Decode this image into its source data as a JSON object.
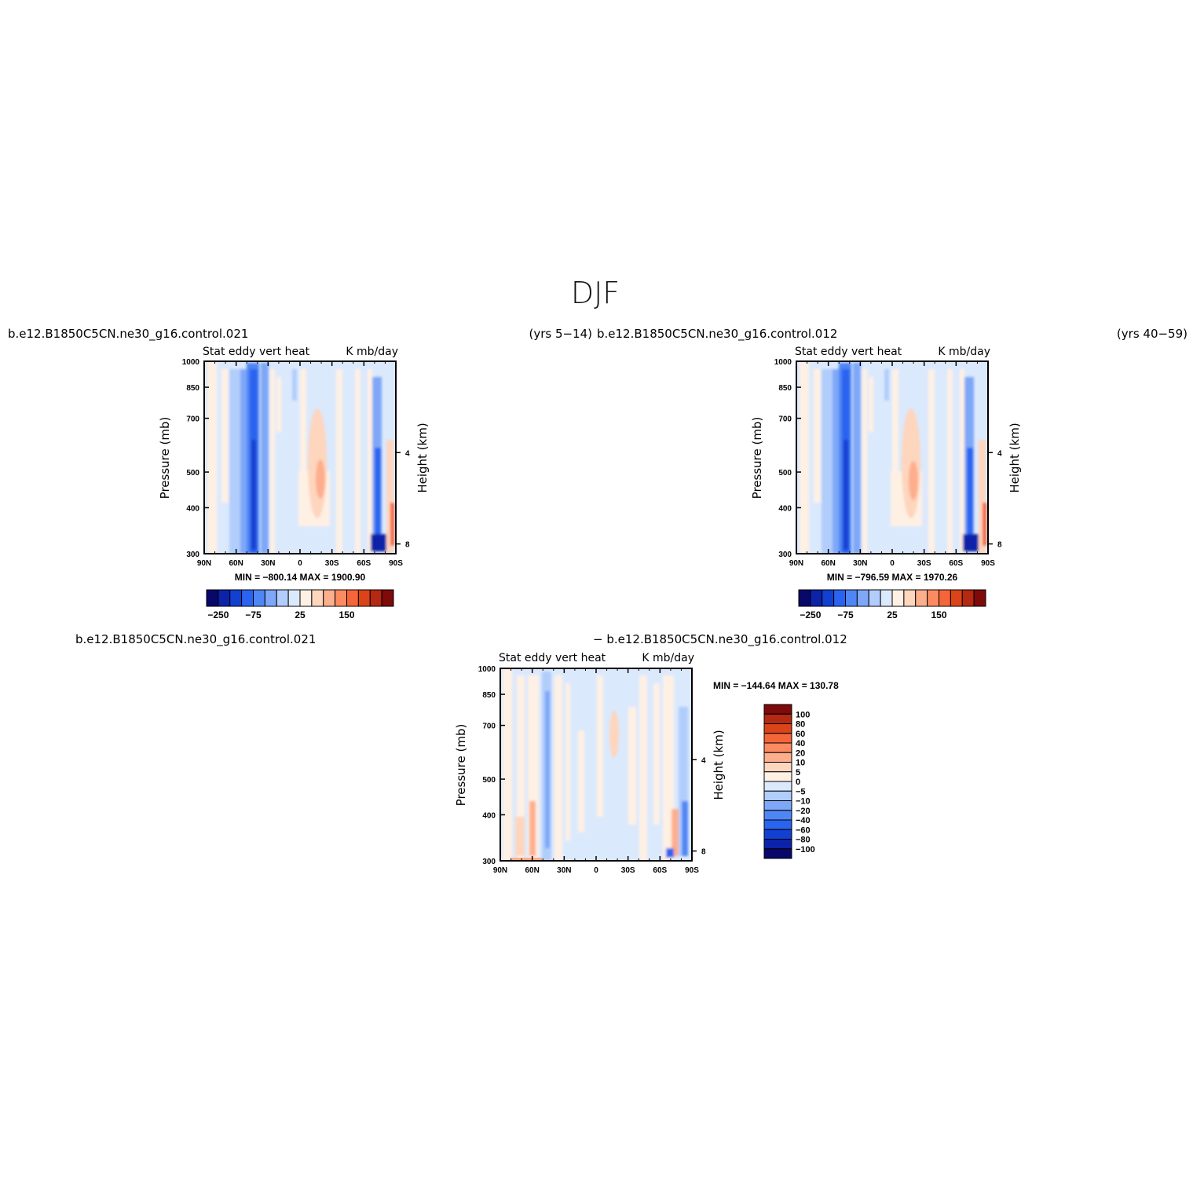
{
  "figure": {
    "title": "DJF"
  },
  "colors": {
    "case_scale": [
      "#08086b",
      "#0c22a8",
      "#1240d0",
      "#2a63ef",
      "#4f86f5",
      "#7ea7f8",
      "#b1cdfb",
      "#dbe9fd",
      "#fff0e4",
      "#fed5bd",
      "#fdae8d",
      "#fc8b62",
      "#f4653a",
      "#db4318",
      "#b52812",
      "#7e0a0a"
    ],
    "diff_scale": [
      "#08086b",
      "#0c22a8",
      "#1240d0",
      "#2a63ef",
      "#4f86f5",
      "#7ea7f8",
      "#b1cdfb",
      "#dbe9fd",
      "#fff0e4",
      "#fed5bd",
      "#fdae8d",
      "#fc8b62",
      "#f4653a",
      "#db4318",
      "#b52812",
      "#7e0a0a"
    ]
  },
  "chart_data": [
    {
      "type": "heatmap",
      "case": "b.e12.B1850C5CN.ne30_g16.control.021",
      "years": "(yrs 5−14)",
      "left_label": "Stat eddy vert heat",
      "right_label": "K mb/day",
      "ylabel": "Pressure (mb)",
      "ylabel_right": "Height (km)",
      "x_ticks": [
        "90N",
        "60N",
        "30N",
        "0",
        "30S",
        "60S",
        "90S"
      ],
      "y_ticks": [
        "300",
        "400",
        "500",
        "700",
        "850",
        "1000"
      ],
      "height_ticks": [
        "8",
        "4"
      ],
      "min_max": "MIN = −800.14   MAX = 1900.90",
      "colorbar_labels": [
        "−250",
        "−75",
        "25",
        "150"
      ],
      "xlim": [
        90,
        -90
      ],
      "ylim": [
        1000,
        300
      ]
    },
    {
      "type": "heatmap",
      "case": "b.e12.B1850C5CN.ne30_g16.control.012",
      "years": "(yrs 40−59)",
      "left_label": "Stat eddy vert heat",
      "right_label": "K mb/day",
      "ylabel": "Pressure (mb)",
      "ylabel_right": "Height (km)",
      "x_ticks": [
        "90N",
        "60N",
        "30N",
        "0",
        "30S",
        "60S",
        "90S"
      ],
      "y_ticks": [
        "300",
        "400",
        "500",
        "700",
        "850",
        "1000"
      ],
      "height_ticks": [
        "8",
        "4"
      ],
      "min_max": "MIN = −796.59   MAX = 1970.26",
      "colorbar_labels": [
        "−250",
        "−75",
        "25",
        "150"
      ],
      "xlim": [
        90,
        -90
      ],
      "ylim": [
        1000,
        300
      ]
    },
    {
      "type": "heatmap",
      "case_a": "b.e12.B1850C5CN.ne30_g16.control.021",
      "case_b": "− b.e12.B1850C5CN.ne30_g16.control.012",
      "left_label": "Stat eddy vert heat",
      "right_label": "K mb/day",
      "ylabel": "Pressure (mb)",
      "ylabel_right": "Height (km)",
      "x_ticks": [
        "90N",
        "60N",
        "30N",
        "0",
        "30S",
        "60S",
        "90S"
      ],
      "y_ticks": [
        "300",
        "400",
        "500",
        "700",
        "850",
        "1000"
      ],
      "height_ticks": [
        "8",
        "4"
      ],
      "min_max": "MIN = −144.64   MAX = 130.78",
      "colorbar_labels": [
        "100",
        "80",
        "60",
        "40",
        "20",
        "10",
        "5",
        "0",
        "−5",
        "−10",
        "−20",
        "−40",
        "−60",
        "−80",
        "−100"
      ],
      "xlim": [
        90,
        -90
      ],
      "ylim": [
        1000,
        300
      ]
    }
  ]
}
